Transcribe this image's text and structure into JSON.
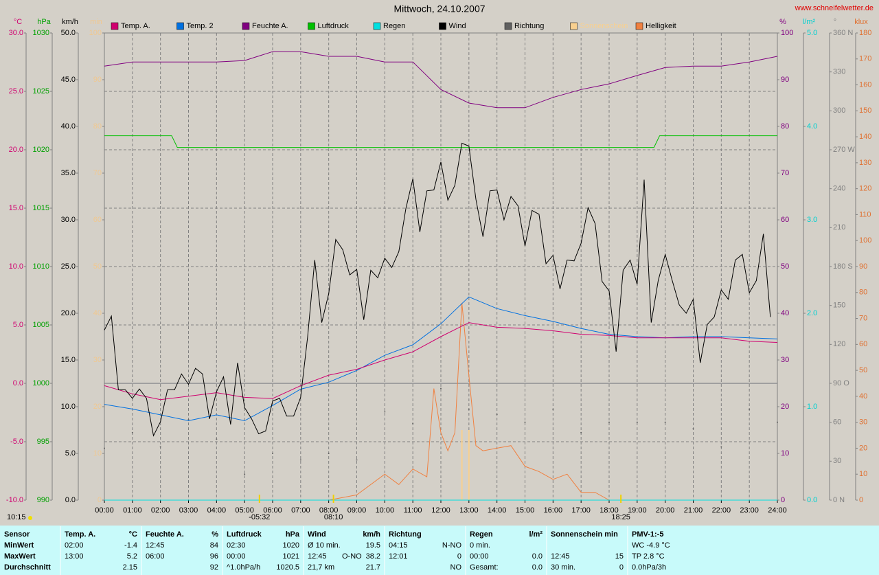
{
  "chart_data": {
    "type": "line",
    "title": "Mittwoch, 24.10.2007",
    "website": "www.schneifelwetter.de",
    "daylight": "10:15",
    "grid": true,
    "xlim": [
      0,
      24
    ],
    "xticks": [
      {
        "value": 0,
        "label": "00:00"
      },
      {
        "value": 1,
        "label": "01:00"
      },
      {
        "value": 2,
        "label": "02:00"
      },
      {
        "value": 3,
        "label": "03:00"
      },
      {
        "value": 4,
        "label": "04:00"
      },
      {
        "value": 5,
        "label": "05:00"
      },
      {
        "value": 6,
        "label": "06:00"
      },
      {
        "value": 7,
        "label": "07:00"
      },
      {
        "value": 8,
        "label": "08:00"
      },
      {
        "value": 9,
        "label": "09:00"
      },
      {
        "value": 10,
        "label": "10:00"
      },
      {
        "value": 11,
        "label": "11:00"
      },
      {
        "value": 12,
        "label": "12:00"
      },
      {
        "value": 13,
        "label": "13:00"
      },
      {
        "value": 14,
        "label": "14:00"
      },
      {
        "value": 15,
        "label": "15:00"
      },
      {
        "value": 16,
        "label": "16:00"
      },
      {
        "value": 17,
        "label": "17:00"
      },
      {
        "value": 18,
        "label": "18:00"
      },
      {
        "value": 19,
        "label": "19:00"
      },
      {
        "value": 20,
        "label": "20:00"
      },
      {
        "value": 21,
        "label": "21:00"
      },
      {
        "value": 22,
        "label": "22:00"
      },
      {
        "value": 23,
        "label": "23:00"
      },
      {
        "value": 24,
        "label": "24:00"
      }
    ],
    "annotations": [
      {
        "text": "-05:32",
        "x": 5.53
      },
      {
        "text": "08:10",
        "x": 8.17
      },
      {
        "text": "18:25",
        "x": 18.42
      }
    ],
    "axes": [
      {
        "unit": "°C",
        "side": "left",
        "color": "#d0006f",
        "lim": [
          -10,
          30
        ],
        "ticks": [
          {
            "value": -10,
            "label": "-10.0"
          },
          {
            "value": -5,
            "label": "-5.0"
          },
          {
            "value": 0,
            "label": "0.0"
          },
          {
            "value": 5,
            "label": "5.0"
          },
          {
            "value": 10,
            "label": "10.0"
          },
          {
            "value": 15,
            "label": "15.0"
          },
          {
            "value": 20,
            "label": "20.0"
          },
          {
            "value": 25,
            "label": "25.0"
          },
          {
            "value": 30,
            "label": "30.0"
          }
        ]
      },
      {
        "unit": "hPa",
        "side": "left",
        "color": "#00a000",
        "lim": [
          990,
          1030
        ],
        "ticks": [
          990,
          995,
          1000,
          1005,
          1010,
          1015,
          1020,
          1025,
          1030
        ]
      },
      {
        "unit": "km/h",
        "side": "left",
        "color": "#000000",
        "lim": [
          0,
          50
        ],
        "ticks": [
          {
            "value": 0,
            "label": "0.0"
          },
          {
            "value": 5,
            "label": "5.0"
          },
          {
            "value": 10,
            "label": "10.0"
          },
          {
            "value": 15,
            "label": "15.0"
          },
          {
            "value": 20,
            "label": "20.0"
          },
          {
            "value": 25,
            "label": "25.0"
          },
          {
            "value": 30,
            "label": "30.0"
          },
          {
            "value": 35,
            "label": "35.0"
          },
          {
            "value": 40,
            "label": "40.0"
          },
          {
            "value": 45,
            "label": "45.0"
          },
          {
            "value": 50,
            "label": "50.0"
          }
        ]
      },
      {
        "unit": "min",
        "side": "left",
        "color": "#f0c890",
        "lim": [
          0,
          100
        ],
        "ticks": [
          0,
          10,
          20,
          30,
          40,
          50,
          60,
          70,
          80,
          90,
          100
        ]
      },
      {
        "unit": "%",
        "side": "right",
        "color": "#800080",
        "lim": [
          0,
          100
        ],
        "ticks": [
          0,
          10,
          20,
          30,
          40,
          50,
          60,
          70,
          80,
          90,
          100
        ]
      },
      {
        "unit": "l/m²",
        "side": "right",
        "color": "#00d0d0",
        "lim": [
          0,
          5
        ],
        "ticks": [
          {
            "value": 0,
            "label": "0.0"
          },
          {
            "value": 1,
            "label": "1.0"
          },
          {
            "value": 2,
            "label": "2.0"
          },
          {
            "value": 3,
            "label": "3.0"
          },
          {
            "value": 4,
            "label": "4.0"
          },
          {
            "value": 5,
            "label": "5.0"
          }
        ]
      },
      {
        "unit": "°",
        "side": "right",
        "color": "#808080",
        "lim": [
          0,
          360
        ],
        "ticks": [
          {
            "value": 0,
            "label": "0 N"
          },
          30,
          60,
          {
            "value": 90,
            "label": "90 O"
          },
          120,
          150,
          {
            "value": 180,
            "label": "180 S"
          },
          210,
          240,
          {
            "value": 270,
            "label": "270 W"
          },
          300,
          330,
          {
            "value": 360,
            "label": "360 N"
          }
        ]
      },
      {
        "unit": "klux",
        "side": "right",
        "color": "#e07030",
        "lim": [
          0,
          180
        ],
        "ticks": [
          0,
          10,
          20,
          30,
          40,
          50,
          60,
          70,
          80,
          90,
          100,
          110,
          120,
          130,
          140,
          150,
          160,
          170,
          180
        ]
      }
    ],
    "series": [
      {
        "name": "Temp. A.",
        "color": "#d0006f",
        "axis": 0,
        "style": "line",
        "x": [
          0,
          1,
          2,
          3,
          4,
          5,
          6,
          7,
          8,
          9,
          10,
          11,
          12,
          13,
          14,
          15,
          16,
          17,
          18,
          19,
          20,
          21,
          22,
          23,
          24
        ],
        "values": [
          -0.2,
          -0.9,
          -1.4,
          -1.1,
          -0.8,
          -1.2,
          -1.3,
          -0.2,
          0.7,
          1.2,
          2.0,
          2.7,
          4.0,
          5.2,
          4.8,
          4.7,
          4.5,
          4.2,
          4.1,
          3.9,
          3.9,
          3.9,
          3.9,
          3.6,
          3.5
        ]
      },
      {
        "name": "Temp. 2",
        "color": "#0070e0",
        "axis": 0,
        "style": "line",
        "x": [
          0,
          1,
          2,
          3,
          4,
          5,
          6,
          7,
          8,
          9,
          10,
          11,
          12,
          13,
          14,
          15,
          16,
          17,
          18,
          19,
          20,
          21,
          22,
          23,
          24
        ],
        "values": [
          -1.8,
          -2.2,
          -2.7,
          -3.2,
          -2.7,
          -3.2,
          -1.9,
          -0.5,
          0.1,
          1.1,
          2.4,
          3.3,
          5.1,
          7.4,
          6.4,
          5.8,
          5.3,
          4.7,
          4.2,
          4.0,
          3.9,
          4.0,
          4.0,
          3.9,
          3.8
        ]
      },
      {
        "name": "Feuchte A.",
        "color": "#800080",
        "axis": 4,
        "style": "line",
        "x": [
          0,
          1,
          2,
          3,
          4,
          5,
          6,
          7,
          8,
          9,
          10,
          11,
          12,
          13,
          14,
          15,
          16,
          17,
          18,
          19,
          20,
          21,
          22,
          23,
          24
        ],
        "values": [
          92.9,
          93.8,
          93.8,
          93.8,
          93.8,
          94.1,
          96,
          96,
          95,
          95,
          93.8,
          93.8,
          87.9,
          85,
          84,
          84,
          86.2,
          87.9,
          89.1,
          90.9,
          92.6,
          92.9,
          92.9,
          93.8,
          95
        ]
      },
      {
        "name": "Luftdruck",
        "color": "#00c000",
        "axis": 1,
        "style": "line",
        "x": [
          0,
          2.4,
          2.6,
          19.6,
          19.8,
          24
        ],
        "values": [
          1021.2,
          1021.2,
          1020.2,
          1020.2,
          1021.2,
          1021.2
        ]
      },
      {
        "name": "Regen",
        "color": "#00e0e0",
        "axis": 5,
        "style": "line",
        "x": [
          0,
          24
        ],
        "values": [
          0,
          0
        ]
      },
      {
        "name": "Wind",
        "color": "#000000",
        "axis": 2,
        "style": "line",
        "x": [
          0,
          0.25,
          0.5,
          0.75,
          1,
          1.25,
          1.5,
          1.75,
          2,
          2.25,
          2.5,
          2.75,
          3,
          3.25,
          3.5,
          3.75,
          4,
          4.25,
          4.5,
          4.75,
          5,
          5.25,
          5.5,
          5.75,
          6,
          6.25,
          6.5,
          6.75,
          7,
          7.25,
          7.5,
          7.75,
          8,
          8.25,
          8.5,
          8.75,
          9,
          9.25,
          9.5,
          9.75,
          10,
          10.25,
          10.5,
          10.75,
          11,
          11.25,
          11.5,
          11.75,
          12,
          12.25,
          12.5,
          12.75,
          13,
          13.25,
          13.5,
          13.75,
          14,
          14.25,
          14.5,
          14.75,
          15,
          15.25,
          15.5,
          15.75,
          16,
          16.25,
          16.5,
          16.75,
          17,
          17.25,
          17.5,
          17.75,
          18,
          18.25,
          18.5,
          18.75,
          19,
          19.25,
          19.5,
          19.75,
          20,
          20.25,
          20.5,
          20.75,
          21,
          21.25,
          21.5,
          21.75,
          22,
          22.25,
          22.5,
          22.75,
          23,
          23.25,
          23.5,
          23.75
        ],
        "values": [
          18.2,
          19.7,
          11.8,
          11.8,
          10.9,
          11.9,
          10.9,
          6.9,
          8.4,
          11.8,
          11.8,
          13.5,
          12.4,
          14.1,
          13.5,
          8.7,
          11.6,
          13.2,
          8.1,
          14.7,
          9.9,
          8.7,
          7.1,
          7.4,
          10.6,
          10.9,
          9.0,
          9.0,
          11.0,
          17.5,
          25.7,
          19.0,
          22.1,
          27.9,
          26.8,
          24.1,
          24.7,
          19.3,
          24.6,
          23.8,
          25.9,
          24.9,
          26.6,
          31.2,
          34.4,
          28.7,
          33.1,
          33.2,
          36.2,
          32.1,
          33.7,
          38.2,
          37.9,
          32.2,
          28.2,
          33.1,
          33.2,
          30.0,
          32.5,
          31.5,
          27.2,
          31.0,
          30.6,
          25.3,
          26.2,
          22.6,
          25.7,
          25.6,
          27.5,
          31.3,
          29.6,
          23.4,
          22.4,
          15.9,
          24.6,
          25.7,
          23.1,
          34.3,
          19.0,
          23.5,
          26.3,
          23.5,
          20.9,
          20.0,
          21.5,
          14.7,
          18.8,
          19.6,
          22.5,
          21.5,
          25.7,
          26.3,
          22.2,
          23.5,
          28.5,
          19.6
        ]
      },
      {
        "name": "Richtung",
        "color": "#606060",
        "axis": 6,
        "style": "dots",
        "x": [
          0,
          1,
          2,
          3,
          4,
          5,
          6,
          7,
          8,
          9,
          10,
          11,
          12,
          13,
          14,
          15,
          16,
          17,
          18,
          19,
          20,
          21,
          22,
          23,
          24
        ],
        "values": [
          40,
          52,
          41,
          62,
          47,
          20,
          36,
          31,
          36,
          31,
          68,
          59,
          86,
          70,
          66,
          60,
          70,
          52,
          60,
          60,
          60,
          55,
          41,
          70,
          60
        ]
      },
      {
        "name": "Sonnenschein",
        "color": "#f8d090",
        "axis": 3,
        "style": "bars",
        "x": [
          12.75,
          13
        ],
        "values": [
          15,
          15
        ]
      },
      {
        "name": "Helligkeit",
        "color": "#f08040",
        "axis": 7,
        "style": "line",
        "x": [
          8,
          9,
          10,
          10.5,
          11,
          11.5,
          11.75,
          12,
          12.25,
          12.5,
          12.75,
          13,
          13.25,
          13.5,
          14,
          14.5,
          15,
          15.5,
          16,
          16.5,
          17,
          17.5,
          18,
          18.25
        ],
        "values": [
          0,
          2,
          10,
          6,
          12,
          9,
          43,
          26,
          19,
          26,
          76,
          48,
          21,
          19,
          20,
          21,
          13,
          11,
          8,
          10,
          3,
          3,
          0,
          0
        ]
      }
    ]
  },
  "table": {
    "header": [
      {
        "left": "Sensor"
      },
      {
        "left": "Temp. A.",
        "right": "°C"
      },
      {
        "left": "Feuchte A.",
        "right": "%"
      },
      {
        "left": "Luftdruck",
        "right": "hPa"
      },
      {
        "left": "Wind",
        "right": "km/h"
      },
      {
        "left": "Richtung"
      },
      {
        "left": "Regen",
        "right": "l/m²"
      },
      {
        "left": "Sonnenschein min"
      },
      {
        "left": "PMV-1:-5"
      }
    ],
    "rows": [
      {
        "label": "MinWert",
        "cells": [
          {
            "left": "02:00",
            "right": "-1.4"
          },
          {
            "left": "12:45",
            "right": "84"
          },
          {
            "left": "02:30",
            "right": "1020"
          },
          {
            "left": "Ø 10 min.",
            "right": "19.5"
          },
          {
            "left": "04:15",
            "right": "N-NO"
          },
          {
            "left": "0 min."
          },
          {},
          {
            "left": "WC -4.9 °C"
          }
        ]
      },
      {
        "label": "MaxWert",
        "cells": [
          {
            "left": "13:00",
            "right": "5.2"
          },
          {
            "left": "06:00",
            "right": "96"
          },
          {
            "left": "00:00",
            "right": "1021"
          },
          {
            "left": "12:45",
            "mid": "O-NO",
            "right": "38.2"
          },
          {
            "left": "12:01",
            "right": "0"
          },
          {
            "left": "00:00",
            "right": "0.0"
          },
          {
            "left": "12:45",
            "right": "15"
          },
          {
            "left": "TP 2.8 °C"
          }
        ]
      },
      {
        "label": "Durchschnitt",
        "cells": [
          {
            "right": "2.15"
          },
          {
            "right": "92"
          },
          {
            "left": "^1.0hPa/h",
            "right": "1020.5"
          },
          {
            "left": "21,7 km",
            "right": "21.7"
          },
          {
            "right": "NO"
          },
          {
            "left": "Gesamt:",
            "right": "0.0"
          },
          {
            "left": "30 min.",
            "right": "0"
          },
          {
            "left": "0.0hPa/3h"
          }
        ]
      }
    ]
  }
}
